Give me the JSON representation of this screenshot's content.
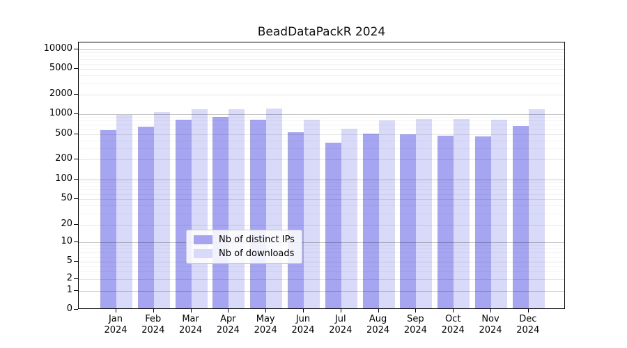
{
  "chart_data": {
    "type": "bar",
    "title": "BeadDataPackR 2024",
    "categories": [
      "Jan",
      "Feb",
      "Mar",
      "Apr",
      "May",
      "Jun",
      "Jul",
      "Aug",
      "Sep",
      "Oct",
      "Nov",
      "Dec"
    ],
    "category_year": "2024",
    "series": [
      {
        "name": "Nb of distinct IPs",
        "color": "#a5a5f2",
        "values": [
          550,
          620,
          780,
          860,
          780,
          510,
          350,
          490,
          480,
          450,
          435,
          630
        ]
      },
      {
        "name": "Nb of downloads",
        "color": "#d9d9f9",
        "values": [
          930,
          1030,
          1120,
          1130,
          1160,
          790,
          580,
          770,
          800,
          800,
          780,
          1140
        ]
      }
    ],
    "y_axis": {
      "scale": "symlog",
      "tick_values": [
        0,
        1,
        2,
        5,
        10,
        20,
        50,
        100,
        200,
        500,
        1000,
        2000,
        5000,
        10000
      ],
      "tick_labels": [
        "0",
        "1",
        "2",
        "5",
        "10",
        "20",
        "50",
        "100",
        "200",
        "500",
        "1000",
        "2000",
        "5000",
        "10000"
      ],
      "range": [
        0,
        10000
      ],
      "grid": "on"
    },
    "legend": {
      "location": "lower center inside plot",
      "entries": [
        "Nb of distinct IPs",
        "Nb of downloads"
      ]
    }
  }
}
